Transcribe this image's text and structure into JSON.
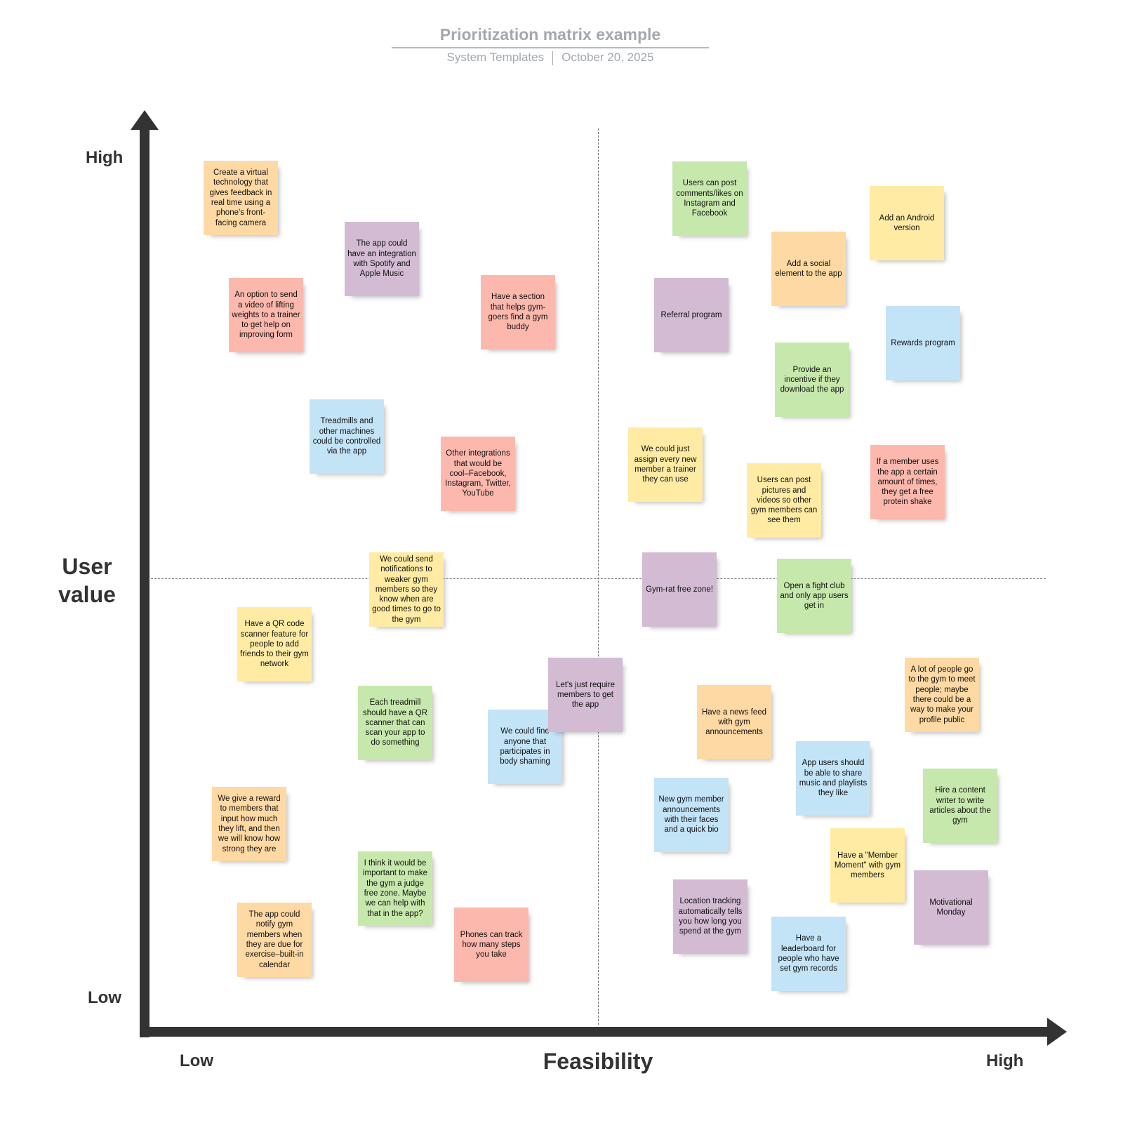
{
  "header": {
    "title": "Prioritization matrix example",
    "source": "System Templates",
    "date": "October 20, 2025"
  },
  "axes": {
    "y_label_line1": "User",
    "y_label_line2": "value",
    "y_high": "High",
    "y_low": "Low",
    "x_label": "Feasibility",
    "x_low": "Low",
    "x_high": "High"
  },
  "colors": {
    "orange": "#FFD9A3",
    "purple": "#D3BCD3",
    "pink": "#FDB8AE",
    "green": "#C7E8AC",
    "yellow": "#FFEBA3",
    "blue": "#C3E3F7",
    "axis": "#333333"
  },
  "notes": [
    {
      "text": "Create a virtual technology that gives feedback in real time using a phone's front-facing camera",
      "color": "orange"
    },
    {
      "text": "The app could have an integration with Spotify and Apple Music",
      "color": "purple"
    },
    {
      "text": "An option to send a video of lifting weights to a trainer to get help on improving form",
      "color": "pink"
    },
    {
      "text": "Have a section that helps gym-goers find a gym buddy",
      "color": "pink"
    },
    {
      "text": "Treadmills and other machines could be controlled via the app",
      "color": "blue"
    },
    {
      "text": "Other integrations that would be cool–Facebook, Instagram, Twitter, YouTube",
      "color": "pink"
    },
    {
      "text": "We could send notifications to weaker gym members so they know when are good times to go to the gym",
      "color": "yellow"
    },
    {
      "text": "Have a QR code scanner feature for people to add friends to their gym network",
      "color": "yellow"
    },
    {
      "text": "Each treadmill should have a QR scanner that can scan your app to do something",
      "color": "green"
    },
    {
      "text": "We could fine anyone that participates in body shaming",
      "color": "blue"
    },
    {
      "text": "Let's just require members to get the app",
      "color": "purple"
    },
    {
      "text": "We give a reward to members that input how much they lift, and then we will know how strong they are",
      "color": "orange"
    },
    {
      "text": "I think it would be important to make the gym a judge free zone. Maybe we can help with that in the app?",
      "color": "green"
    },
    {
      "text": "The app could notify gym members when they are due for exercise–built-in calendar",
      "color": "orange"
    },
    {
      "text": "Phones can track how many steps you take",
      "color": "pink"
    },
    {
      "text": "Users can post comments/likes on Instagram and Facebook",
      "color": "green"
    },
    {
      "text": "Add an Android version",
      "color": "yellow"
    },
    {
      "text": "Add a social element to the app",
      "color": "orange"
    },
    {
      "text": "Referral program",
      "color": "purple"
    },
    {
      "text": "Rewards program",
      "color": "blue"
    },
    {
      "text": "Provide an incentive if they download the app",
      "color": "green"
    },
    {
      "text": "We could just assign every new member a trainer they can use",
      "color": "yellow"
    },
    {
      "text": "Users can post pictures and videos so other gym members can see them",
      "color": "yellow"
    },
    {
      "text": "If a member uses the app a certain amount of times, they get a free protein shake",
      "color": "pink"
    },
    {
      "text": "Gym-rat free zone!",
      "color": "purple"
    },
    {
      "text": "Open a fight club and only app users get in",
      "color": "green"
    },
    {
      "text": "A lot of people go to the gym to meet people; maybe there could be a way to make your profile public",
      "color": "orange"
    },
    {
      "text": "Have a news feed with gym announcements",
      "color": "orange"
    },
    {
      "text": "App users should be able to share music and playlists they like",
      "color": "blue"
    },
    {
      "text": "Hire a content writer to write articles about the gym",
      "color": "green"
    },
    {
      "text": "New gym member announcements with their faces and a quick bio",
      "color": "blue"
    },
    {
      "text": "Have a \"Member Moment\" with gym members",
      "color": "yellow"
    },
    {
      "text": "Motivational Monday",
      "color": "purple"
    },
    {
      "text": "Location tracking automatically tells you how long you spend at the gym",
      "color": "purple"
    },
    {
      "text": "Have a leaderboard for people who have set gym records",
      "color": "blue"
    }
  ]
}
